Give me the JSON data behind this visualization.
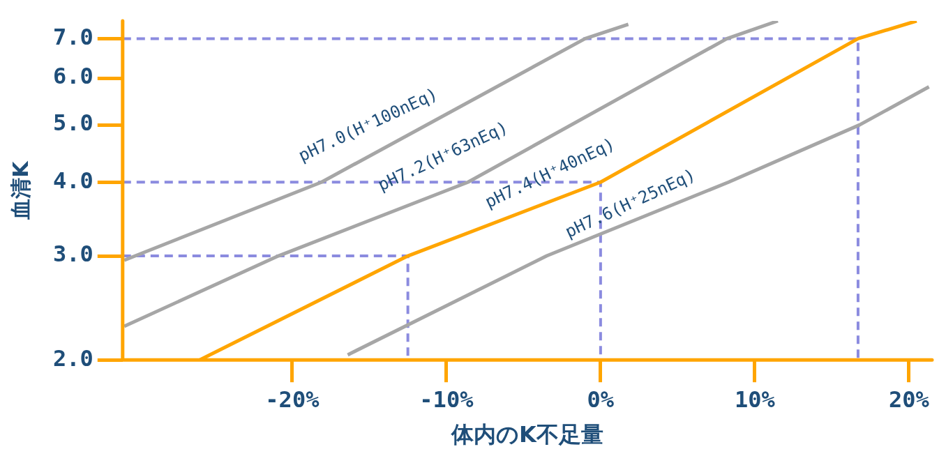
{
  "chart_data": {
    "type": "line",
    "xlabel": "体内のK不足量",
    "ylabel": "血清K",
    "xlim": [
      -31,
      21.5
    ],
    "ylim": [
      2,
      7.5
    ],
    "log": "y",
    "grid": false,
    "legend": false,
    "marker": "none",
    "xticks": [
      {
        "value": -20,
        "label": "-20%"
      },
      {
        "value": -10,
        "label": "-10%"
      },
      {
        "value": 0,
        "label": "0%"
      },
      {
        "value": 10,
        "label": "10%"
      },
      {
        "value": 20,
        "label": "20%"
      }
    ],
    "yticks": [
      {
        "value": 2,
        "label": "2.0"
      },
      {
        "value": 3,
        "label": "3.0"
      },
      {
        "value": 4,
        "label": "4.0"
      },
      {
        "value": 5,
        "label": "5.0"
      },
      {
        "value": 6,
        "label": "6.0"
      },
      {
        "value": 7,
        "label": "7.0"
      }
    ],
    "series": [
      {
        "name": "pH7.0(H⁺100nEq)",
        "color": "#a6a6a6",
        "x": [
          -30.9,
          -18.1,
          -1,
          1.8
        ],
        "values": [
          2.95,
          4,
          7,
          7.4
        ]
      },
      {
        "name": "pH7.2(H⁺63nEq)",
        "color": "#a6a6a6",
        "x": [
          -30.9,
          -20.9,
          -8.6,
          8.2,
          11.5
        ],
        "values": [
          2.28,
          3,
          4,
          7,
          7.5
        ]
      },
      {
        "name": "pH7.4(H⁺40nEq)",
        "color": "#ffa500",
        "x": [
          -26,
          -12.5,
          0,
          16.7,
          20.5
        ],
        "values": [
          2,
          3,
          4,
          7,
          7.5
        ]
      },
      {
        "name": "pH7.6(H⁺25nEq)",
        "color": "#a6a6a6",
        "x": [
          -16.4,
          -3.5,
          8.3,
          16.8,
          21.3
        ],
        "values": [
          2.04,
          3,
          4,
          5,
          5.8
        ]
      },
      {
        "color": "#8b8bdf",
        "line_style": "dashed",
        "x": [
          -31,
          -12.5,
          -12.5
        ],
        "values": [
          3,
          3,
          2
        ]
      },
      {
        "color": "#8b8bdf",
        "line_style": "dashed",
        "x": [
          -31,
          0,
          0
        ],
        "values": [
          4,
          4,
          2
        ]
      },
      {
        "color": "#8b8bdf",
        "line_style": "dashed",
        "x": [
          -31,
          16.7,
          16.7
        ],
        "values": [
          7,
          7,
          2
        ]
      }
    ]
  }
}
